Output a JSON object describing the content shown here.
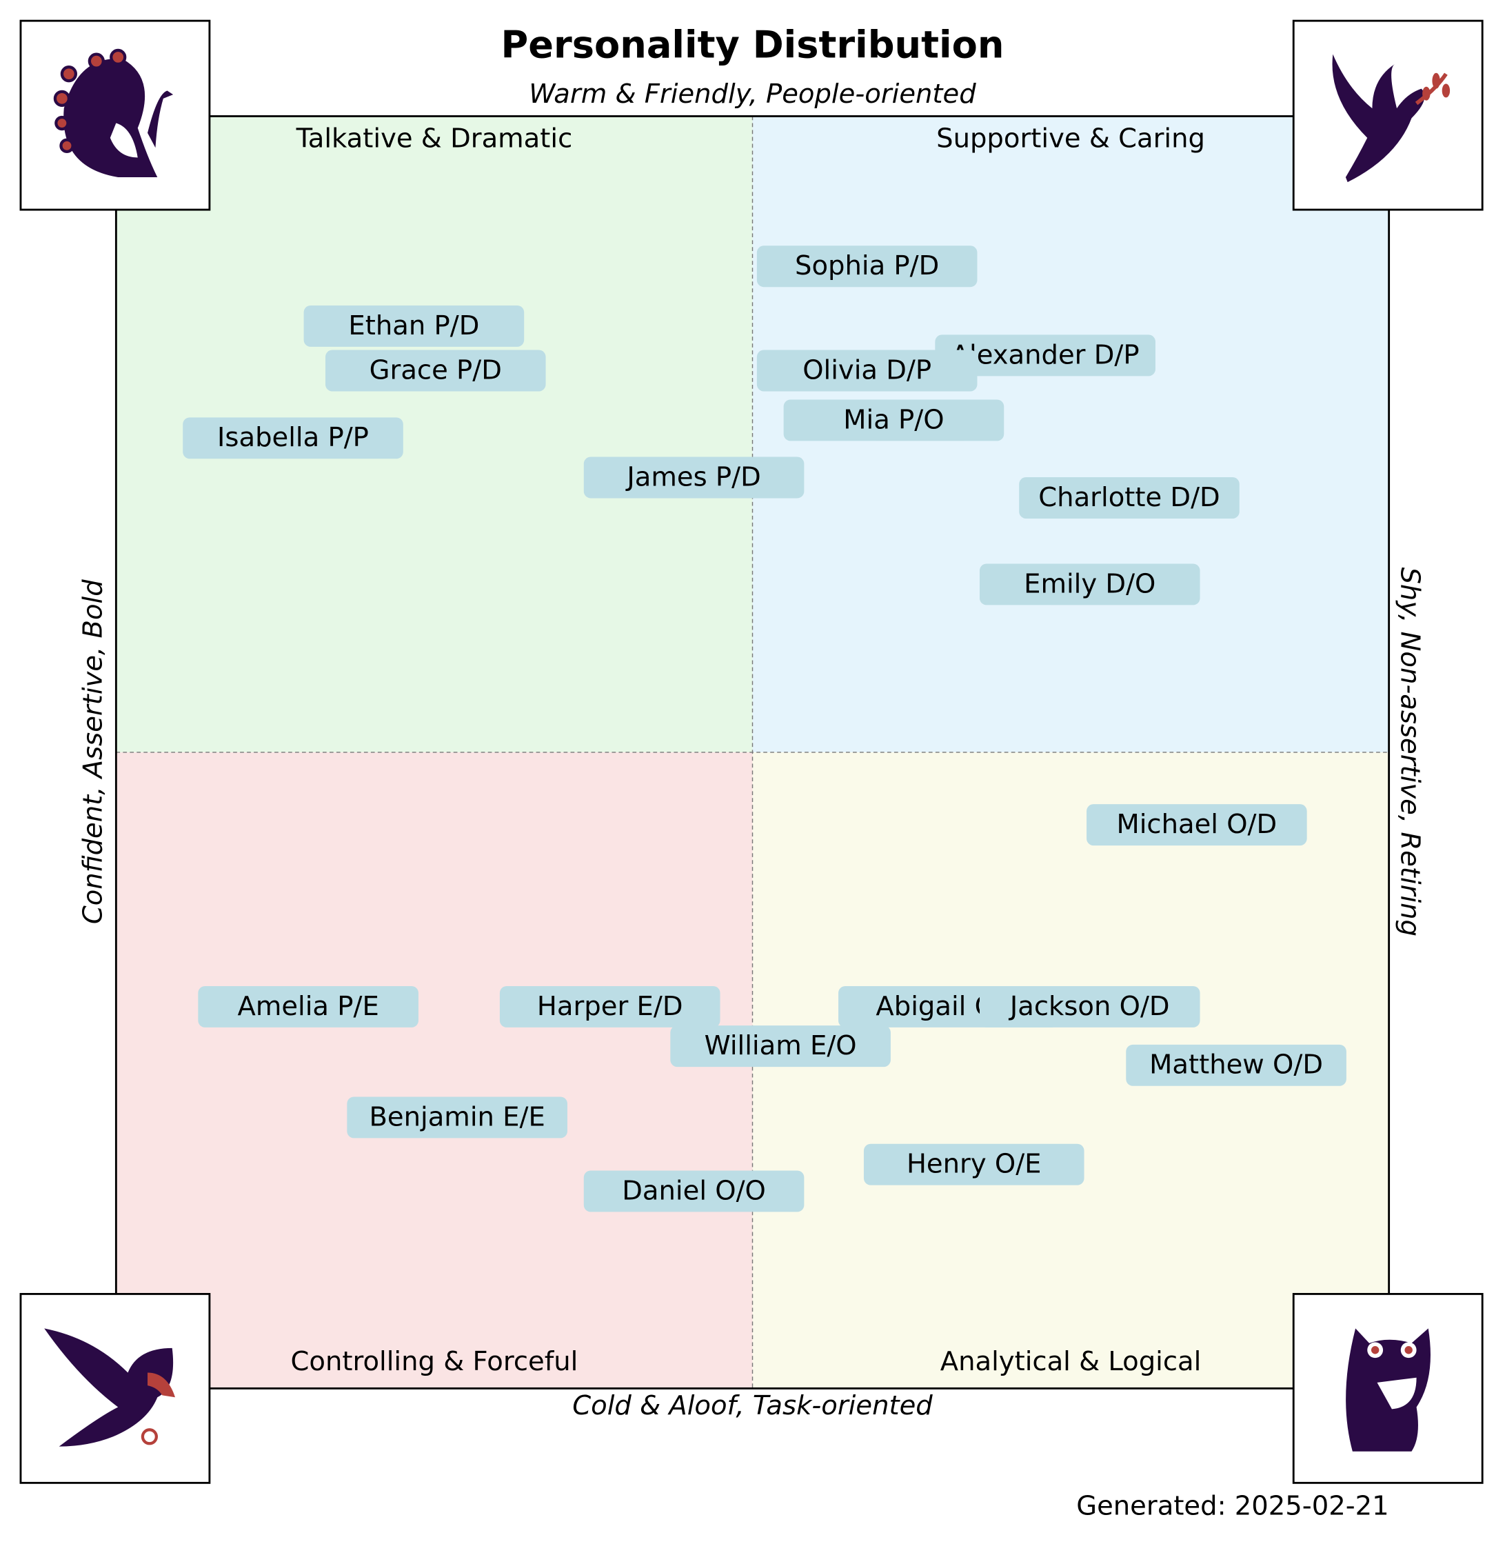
{
  "chart_data": {
    "type": "labeled-scatter",
    "title": "Personality Distribution",
    "top_label": "Warm & Friendly, People-oriented",
    "bottom_label": "Cold & Aloof, Task-oriented",
    "left_label": "Confident, Assertive, Bold",
    "right_label": "Shy, Non-assertive, Retiring",
    "footer": "Generated: 2025-02-21",
    "quadrants": [
      {
        "label": "Talkative & Dramatic",
        "color": "#e6f8e6"
      },
      {
        "label": "Supportive & Caring",
        "color": "#e5f4fc"
      },
      {
        "label": "Controlling & Forceful",
        "color": "#fae4e4"
      },
      {
        "label": "Analytical & Logical",
        "color": "#fafaea"
      }
    ],
    "xlim": [
      0,
      100
    ],
    "ylim": [
      0,
      100
    ],
    "point_color": "#bcdde5",
    "labels": [
      "Sophia P/D",
      "Ethan P/D",
      "Grace P/D",
      "Alexander D/P",
      "Olivia D/P",
      "Mia P/O",
      "Isabella P/P",
      "James P/D",
      "Charlotte D/D",
      "Emily D/O",
      "Michael O/D",
      "Amelia P/E",
      "Harper E/D",
      "Abigail O/E",
      "Jackson O/D",
      "William E/O",
      "Matthew O/D",
      "Benjamin E/E",
      "Henry O/E",
      "Daniel O/O"
    ],
    "x": [
      59.0,
      23.4,
      25.1,
      73.0,
      59.0,
      61.1,
      13.9,
      45.4,
      79.6,
      76.5,
      84.9,
      15.1,
      38.8,
      65.4,
      76.5,
      52.2,
      88.0,
      26.8,
      67.4,
      45.4
    ],
    "values": [
      88.2,
      83.5,
      80.0,
      81.2,
      80.0,
      76.1,
      74.7,
      71.6,
      70.0,
      63.2,
      44.3,
      30.0,
      30.0,
      30.0,
      30.0,
      26.9,
      25.4,
      21.3,
      17.6,
      15.5
    ]
  }
}
